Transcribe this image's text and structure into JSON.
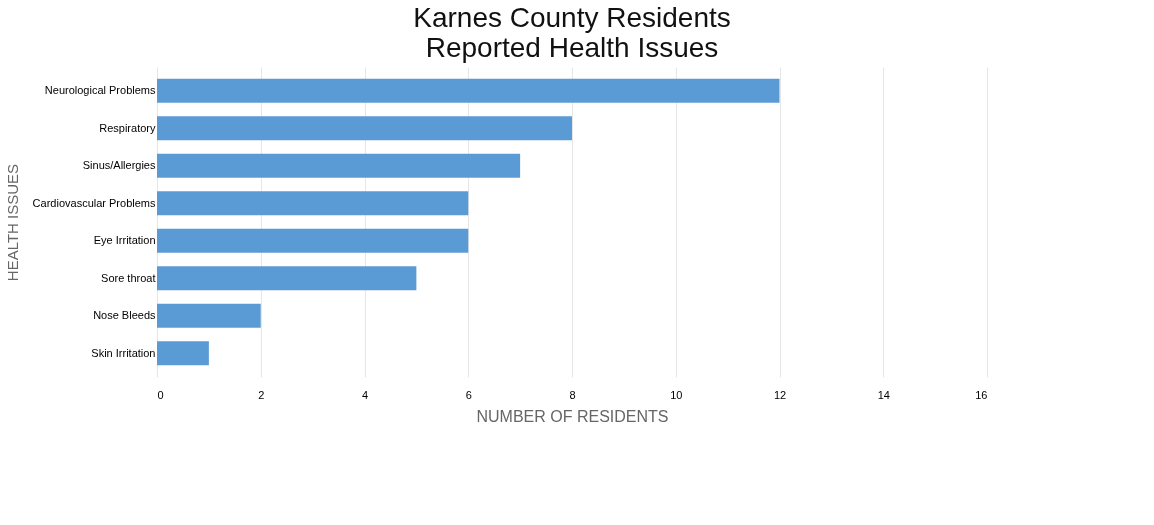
{
  "chart_data": {
    "type": "bar",
    "orientation": "horizontal",
    "title": [
      "Karnes County Residents",
      "Reported Health Issues"
    ],
    "xlabel": "NUMBER OF RESIDENTS",
    "ylabel": "HEALTH ISSUES",
    "categories": [
      "Neurological Problems",
      "Respiratory",
      "Sinus/Allergies",
      "Cardiovascular Problems",
      "Eye Irritation",
      "Sore throat",
      "Nose Bleeds",
      "Skin Irritation"
    ],
    "values": [
      12,
      8,
      7,
      6,
      6,
      5,
      2,
      1
    ],
    "color": "#5b9bd5",
    "xlim": [
      0,
      16
    ],
    "xticks": [
      0,
      2,
      4,
      6,
      8,
      10,
      12,
      14,
      16
    ],
    "grid": "x"
  }
}
